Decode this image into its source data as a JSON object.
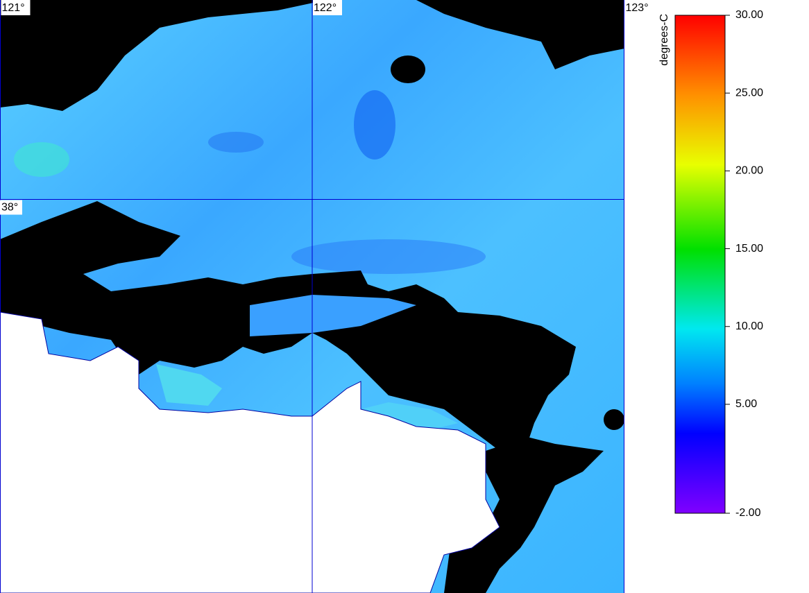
{
  "map": {
    "lon_labels": [
      {
        "value": 121,
        "label": "121°"
      },
      {
        "value": 122,
        "label": "122°"
      },
      {
        "value": 123,
        "label": "123°"
      }
    ],
    "lat_labels": [
      {
        "value": 38,
        "label": "38°"
      }
    ],
    "colorbar": {
      "title": "degrees-C",
      "ticks": [
        {
          "value": 30,
          "label": "30.00"
        },
        {
          "value": 25,
          "label": "25.00"
        },
        {
          "value": 20,
          "label": "20.00"
        },
        {
          "value": 15,
          "label": "15.00"
        },
        {
          "value": 10,
          "label": "10.00"
        },
        {
          "value": 5,
          "label": "5.00"
        },
        {
          "value": -2,
          "label": "-2.00"
        }
      ]
    }
  }
}
